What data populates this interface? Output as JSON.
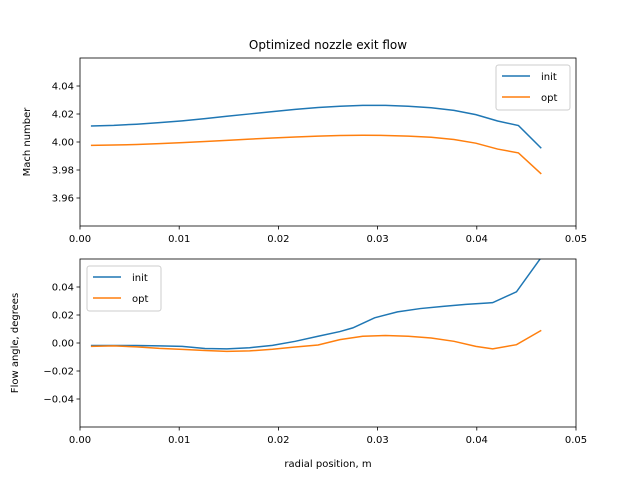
{
  "chart_data": [
    {
      "type": "line",
      "title": "Optimized nozzle exit flow",
      "xlabel": "",
      "ylabel": "Mach number",
      "xlim": [
        0.0,
        0.05
      ],
      "ylim": [
        3.95,
        4.05
      ],
      "xticks": [
        "0.00",
        "0.01",
        "0.02",
        "0.03",
        "0.04",
        "0.05"
      ],
      "yticks": [
        "3.96",
        "3.98",
        "4.00",
        "4.02",
        "4.04"
      ],
      "legend_position": "top-right",
      "series": [
        {
          "name": "init",
          "color": "#1f77b4",
          "x": [
            0.0011,
            0.0034,
            0.0057,
            0.008,
            0.0103,
            0.0126,
            0.0148,
            0.0171,
            0.0194,
            0.0217,
            0.024,
            0.0262,
            0.0285,
            0.0308,
            0.0331,
            0.0354,
            0.0377,
            0.0399,
            0.0421,
            0.0442,
            0.0465
          ],
          "y": [
            4.0095,
            4.0099,
            4.0106,
            4.0115,
            4.0126,
            4.0139,
            4.0153,
            4.0167,
            4.0181,
            4.0194,
            4.0205,
            4.0213,
            4.0218,
            4.0218,
            4.0213,
            4.0204,
            4.0188,
            4.0163,
            4.0125,
            4.0098,
            3.9963
          ]
        },
        {
          "name": "opt",
          "color": "#ff7f0e",
          "x": [
            0.0011,
            0.0034,
            0.0057,
            0.008,
            0.0103,
            0.0126,
            0.0148,
            0.0171,
            0.0194,
            0.0217,
            0.024,
            0.0262,
            0.0285,
            0.0308,
            0.0331,
            0.0354,
            0.0377,
            0.0399,
            0.0421,
            0.0442,
            0.0465
          ],
          "y": [
            3.998,
            3.9982,
            3.9985,
            3.999,
            3.9996,
            4.0003,
            4.001,
            4.0017,
            4.0024,
            4.003,
            4.0035,
            4.0039,
            4.004,
            4.0039,
            4.0035,
            4.0028,
            4.0015,
            3.9993,
            3.9958,
            3.9935,
            3.981
          ]
        }
      ]
    },
    {
      "type": "line",
      "title": "",
      "xlabel": "radial position, m",
      "ylabel": "Flow angle, degrees",
      "xlim": [
        0.0,
        0.05
      ],
      "ylim": [
        -0.05,
        0.05
      ],
      "xticks": [
        "0.00",
        "0.01",
        "0.02",
        "0.03",
        "0.04",
        "0.05"
      ],
      "yticks": [
        "−0.04",
        "−0.02",
        "0.00",
        "0.02",
        "0.04"
      ],
      "legend_position": "top-left",
      "series": [
        {
          "name": "init",
          "color": "#1f77b4",
          "x": [
            0.0011,
            0.0034,
            0.0057,
            0.008,
            0.0103,
            0.0126,
            0.0148,
            0.0171,
            0.0194,
            0.0217,
            0.024,
            0.0262,
            0.0275,
            0.0297,
            0.032,
            0.0343,
            0.0366,
            0.0389,
            0.0411,
            0.0416,
            0.044,
            0.0465
          ],
          "y": [
            -0.0015,
            -0.0015,
            -0.0015,
            -0.0017,
            -0.002,
            -0.0033,
            -0.0035,
            -0.0028,
            -0.0014,
            0.001,
            0.004,
            0.0068,
            0.009,
            0.015,
            0.0185,
            0.0205,
            0.0218,
            0.023,
            0.0238,
            0.024,
            0.0305,
            0.051
          ]
        },
        {
          "name": "opt",
          "color": "#ff7f0e",
          "x": [
            0.0011,
            0.0034,
            0.0057,
            0.008,
            0.0103,
            0.0126,
            0.0148,
            0.0171,
            0.0194,
            0.0217,
            0.024,
            0.0262,
            0.0285,
            0.0308,
            0.0331,
            0.0354,
            0.0377,
            0.0399,
            0.0416,
            0.044,
            0.0465
          ],
          "y": [
            -0.002,
            -0.0017,
            -0.0023,
            -0.0032,
            -0.0038,
            -0.0045,
            -0.005,
            -0.0047,
            -0.0037,
            -0.0024,
            -0.0012,
            0.002,
            0.004,
            0.0045,
            0.004,
            0.003,
            0.001,
            -0.002,
            -0.0035,
            -0.001,
            0.0075
          ]
        }
      ]
    }
  ]
}
